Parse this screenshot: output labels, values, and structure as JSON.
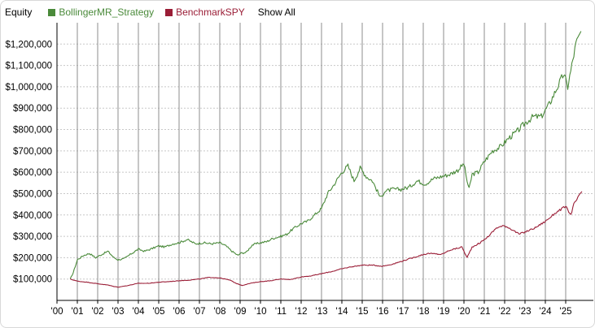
{
  "legend": {
    "title": "Equity",
    "show_all_label": "Show All"
  },
  "colors": {
    "strategy": "#4a8a3a",
    "benchmark": "#9a1d36",
    "grid_v": "#8c8c8c",
    "grid_h": "#c8c8c8",
    "axis": "#000000"
  },
  "chart_data": {
    "type": "line",
    "title": "Equity",
    "xlabel": "",
    "ylabel": "",
    "x_ticks": [
      "'00",
      "'01",
      "'02",
      "'03",
      "'04",
      "'05",
      "'06",
      "'07",
      "'08",
      "'09",
      "'10",
      "'11",
      "'12",
      "'13",
      "'14",
      "'15",
      "'16",
      "'17",
      "'18",
      "'19",
      "'20",
      "'21",
      "'22",
      "'23",
      "'24",
      "'25"
    ],
    "ylim": [
      0,
      1300000
    ],
    "y_ticks": [
      100000,
      200000,
      300000,
      400000,
      500000,
      600000,
      700000,
      800000,
      900000,
      1000000,
      1100000,
      1200000
    ],
    "y_tick_labels": [
      "$100,000",
      "$200,000",
      "$300,000",
      "$400,000",
      "$500,000",
      "$600,000",
      "$700,000",
      "$800,000",
      "$900,000",
      "$1,000,000",
      "$1,100,000",
      "$1,200,000"
    ],
    "xlim": [
      2000.0,
      2025.85
    ],
    "grid": true,
    "legend_position": "top-left",
    "series": [
      {
        "name": "BollingerMR_Strategy",
        "x": [
          2000.65,
          2000.8,
          2001.0,
          2001.3,
          2001.6,
          2001.9,
          2002.2,
          2002.5,
          2002.8,
          2003.0,
          2003.3,
          2003.6,
          2004.0,
          2004.3,
          2004.6,
          2005.0,
          2005.3,
          2005.7,
          2006.0,
          2006.4,
          2006.8,
          2007.2,
          2007.6,
          2008.0,
          2008.3,
          2008.6,
          2008.9,
          2009.0,
          2009.3,
          2009.6,
          2010.0,
          2010.3,
          2010.6,
          2011.0,
          2011.3,
          2011.6,
          2012.0,
          2012.3,
          2012.6,
          2013.0,
          2013.3,
          2013.6,
          2014.0,
          2014.3,
          2014.6,
          2014.9,
          2015.2,
          2015.5,
          2015.9,
          2016.1,
          2016.5,
          2016.9,
          2017.3,
          2017.7,
          2018.1,
          2018.5,
          2018.9,
          2019.3,
          2019.7,
          2020.0,
          2020.15,
          2020.25,
          2020.4,
          2020.7,
          2021.0,
          2021.4,
          2021.8,
          2022.2,
          2022.6,
          2023.0,
          2023.4,
          2023.8,
          2024.2,
          2024.6,
          2024.9,
          2025.1,
          2025.3,
          2025.5,
          2025.75
        ],
        "values": [
          100000,
          130000,
          190000,
          210000,
          220000,
          200000,
          215000,
          230000,
          200000,
          190000,
          195000,
          215000,
          240000,
          230000,
          240000,
          255000,
          250000,
          265000,
          270000,
          285000,
          265000,
          270000,
          265000,
          270000,
          255000,
          230000,
          210000,
          220000,
          225000,
          260000,
          270000,
          275000,
          290000,
          300000,
          310000,
          335000,
          360000,
          370000,
          395000,
          430000,
          500000,
          540000,
          600000,
          630000,
          560000,
          620000,
          580000,
          560000,
          480000,
          510000,
          520000,
          520000,
          530000,
          560000,
          545000,
          570000,
          580000,
          590000,
          610000,
          640000,
          560000,
          520000,
          590000,
          600000,
          650000,
          700000,
          720000,
          760000,
          790000,
          830000,
          860000,
          860000,
          920000,
          1000000,
          1060000,
          1000000,
          1100000,
          1200000,
          1260000
        ]
      },
      {
        "name": "BenchmarkSPY",
        "x": [
          2000.65,
          2001.0,
          2001.5,
          2002.0,
          2002.5,
          2002.8,
          2003.0,
          2003.5,
          2004.0,
          2004.5,
          2005.0,
          2005.5,
          2006.0,
          2006.5,
          2007.0,
          2007.5,
          2008.0,
          2008.5,
          2008.8,
          2009.1,
          2009.5,
          2010.0,
          2010.5,
          2011.0,
          2011.5,
          2012.0,
          2012.5,
          2013.0,
          2013.5,
          2014.0,
          2014.5,
          2015.0,
          2015.5,
          2016.0,
          2016.5,
          2017.0,
          2017.5,
          2018.0,
          2018.3,
          2018.9,
          2019.3,
          2019.9,
          2020.15,
          2020.4,
          2020.8,
          2021.2,
          2021.6,
          2022.0,
          2022.4,
          2022.7,
          2023.0,
          2023.5,
          2024.0,
          2024.5,
          2025.0,
          2025.25,
          2025.4,
          2025.6,
          2025.8
        ],
        "values": [
          100000,
          90000,
          85000,
          78000,
          72000,
          65000,
          62000,
          70000,
          80000,
          80000,
          85000,
          88000,
          92000,
          95000,
          100000,
          108000,
          105000,
          95000,
          80000,
          70000,
          80000,
          88000,
          92000,
          100000,
          98000,
          110000,
          115000,
          125000,
          135000,
          148000,
          158000,
          165000,
          165000,
          160000,
          170000,
          185000,
          200000,
          215000,
          220000,
          215000,
          235000,
          250000,
          200000,
          250000,
          270000,
          300000,
          340000,
          350000,
          330000,
          310000,
          320000,
          340000,
          370000,
          410000,
          440000,
          400000,
          450000,
          480000,
          510000
        ]
      }
    ]
  }
}
